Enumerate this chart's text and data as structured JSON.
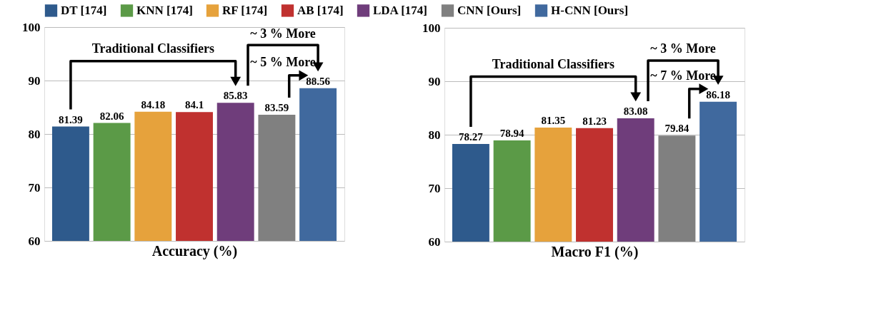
{
  "chart_data": [
    {
      "type": "bar",
      "xlabel": "Accuracy (%)",
      "categories": [
        null
      ],
      "series": [
        {
          "name": "DT [174]",
          "color": "#2e5a8c",
          "values": [
            81.39
          ]
        },
        {
          "name": "KNN [174]",
          "color": "#5b9a47",
          "values": [
            82.06
          ]
        },
        {
          "name": "RF [174]",
          "color": "#e6a23c",
          "values": [
            84.18
          ]
        },
        {
          "name": "AB [174]",
          "color": "#c0312f",
          "values": [
            84.1
          ]
        },
        {
          "name": "LDA [174]",
          "color": "#6f3d7b",
          "values": [
            85.83
          ]
        },
        {
          "name": "CNN [Ours]",
          "color": "#808080",
          "values": [
            83.59
          ]
        },
        {
          "name": "H-CNN [Ours]",
          "color": "#40699e",
          "values": [
            88.56
          ]
        }
      ],
      "ylim": [
        60,
        100
      ],
      "yticks": [
        60,
        70,
        80,
        90,
        100
      ],
      "grid": "y",
      "legend": "top",
      "data_labels": true,
      "tick_labels": "y",
      "annotations": [
        "Traditional Classifiers",
        "~ 3 % More",
        "~ 5 % More"
      ]
    },
    {
      "type": "bar",
      "xlabel": "Macro F1 (%)",
      "categories": [
        null
      ],
      "series": [
        {
          "color": "#2e5a8c",
          "values": [
            78.27
          ]
        },
        {
          "color": "#5b9a47",
          "values": [
            78.94
          ]
        },
        {
          "color": "#e6a23c",
          "values": [
            81.35
          ]
        },
        {
          "color": "#c0312f",
          "values": [
            81.23
          ]
        },
        {
          "color": "#6f3d7b",
          "values": [
            83.08
          ]
        },
        {
          "color": "#808080",
          "values": [
            79.84
          ]
        },
        {
          "color": "#40699e",
          "values": [
            86.18
          ]
        }
      ],
      "ylim": [
        60,
        100
      ],
      "yticks": [
        60,
        70,
        80,
        90,
        100
      ],
      "grid": "y",
      "data_labels": true,
      "tick_labels": "y",
      "annotations": [
        "Traditional Classifiers",
        "~ 3 % More",
        "~ 7 % More"
      ]
    }
  ]
}
